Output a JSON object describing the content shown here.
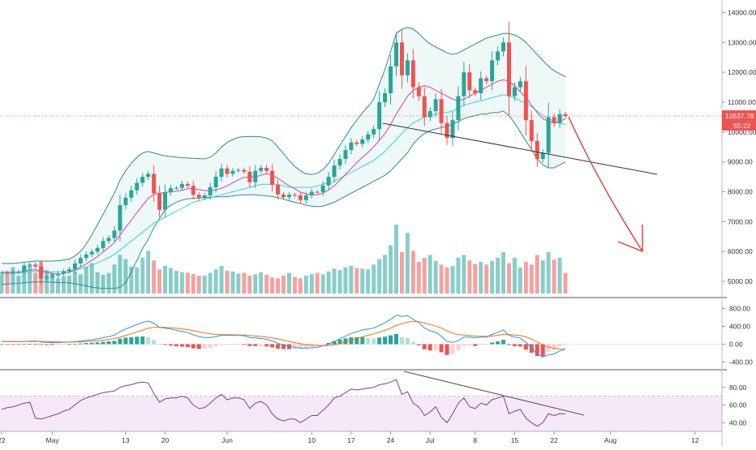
{
  "chart_data": {
    "type": "line",
    "timeframe_days": 90,
    "price_axis": {
      "ticks": [
        "14000.00",
        "13000.00",
        "12000.00",
        "11000.00",
        "10000.00",
        "9000.00",
        "8000.00",
        "7000.00",
        "6000.00",
        "5000.00"
      ],
      "tick_values": [
        14000,
        13000,
        12000,
        11000,
        10000,
        9000,
        8000,
        7000,
        6000,
        5000
      ],
      "ylim": [
        4200,
        14400
      ]
    },
    "time_axis": {
      "ticks": [
        "22",
        "May",
        "13",
        "20",
        "Jun",
        "10",
        "17",
        "24",
        "Jul",
        "8",
        "15",
        "22",
        "Aug",
        "12"
      ],
      "tick_bar_index": [
        0,
        9,
        22,
        29,
        40,
        55,
        62,
        69,
        76,
        84,
        91,
        98,
        108,
        123
      ]
    },
    "last_price": {
      "label": "10537.78",
      "value": 10537.78,
      "color": "#ef5350"
    },
    "countdown": {
      "label": "55:22"
    },
    "price_series": {
      "name": "",
      "close": [
        5300,
        5290,
        5310,
        5330,
        5530,
        5560,
        5500,
        5100,
        5150,
        5200,
        5260,
        5330,
        5400,
        5600,
        5780,
        5900,
        5990,
        6120,
        6350,
        6450,
        6700,
        7550,
        7800,
        8050,
        8300,
        8500,
        8600,
        7950,
        7400,
        7980,
        8120,
        8130,
        8260,
        8200,
        7900,
        7800,
        7880,
        8150,
        8500,
        8780,
        8600,
        8700,
        8730,
        8670,
        8320,
        8700,
        8800,
        8700,
        8230,
        7910,
        7820,
        7900,
        7880,
        7720,
        7880,
        8000,
        7990,
        8210,
        8500,
        8880,
        9100,
        9400,
        9650,
        9600,
        9750,
        9920,
        10100,
        11000,
        11300,
        12200,
        13000,
        11900,
        12400,
        11500,
        11200,
        10500,
        10700,
        11100,
        10300,
        9800,
        10400,
        11200,
        12000,
        11400,
        11300,
        11800,
        11700,
        12400,
        12700,
        13000,
        11200,
        11500,
        11700,
        10400,
        9700,
        9100,
        9300,
        10500,
        10300,
        10600,
        10537.78
      ]
    },
    "bollinger_basis_values": [
      5250,
      5260,
      5270,
      5280,
      5300,
      5320,
      5330,
      5330,
      5330,
      5320,
      5320,
      5330,
      5350,
      5380,
      5420,
      5480,
      5550,
      5620,
      5700,
      5800,
      5900,
      6050,
      6200,
      6350,
      6500,
      6650,
      6800,
      6950,
      7050,
      7150,
      7250,
      7350,
      7450,
      7550,
      7650,
      7700,
      7750,
      7800,
      7850,
      7900,
      7950,
      8000,
      8050,
      8100,
      8150,
      8200,
      8250,
      8250,
      8250,
      8250,
      8200,
      8150,
      8150,
      8150,
      8150,
      8150,
      8200,
      8250,
      8300,
      8350,
      8450,
      8550,
      8650,
      8750,
      8850,
      8950,
      9050,
      9200,
      9350,
      9550,
      9750,
      9950,
      10150,
      10300,
      10400,
      10500,
      10550,
      10600,
      10650,
      10650,
      10700,
      10800,
      10900,
      10950,
      11000,
      11050,
      11100,
      11150,
      11200,
      11250,
      11200,
      11150,
      11050,
      10950,
      10850,
      10700,
      10550,
      10450,
      10350,
      10300,
      10250
    ],
    "ma_fast_values": [
      5300,
      5300,
      5300,
      5310,
      5340,
      5370,
      5390,
      5340,
      5300,
      5270,
      5240,
      5260,
      5300,
      5380,
      5480,
      5580,
      5700,
      5830,
      5980,
      6130,
      6300,
      6550,
      6800,
      7050,
      7300,
      7550,
      7780,
      7920,
      7950,
      7980,
      8000,
      8020,
      8050,
      8100,
      8100,
      8070,
      8040,
      8030,
      8060,
      8120,
      8200,
      8300,
      8400,
      8480,
      8500,
      8500,
      8550,
      8600,
      8550,
      8450,
      8320,
      8200,
      8100,
      7990,
      7930,
      7900,
      7900,
      7960,
      8060,
      8200,
      8380,
      8580,
      8780,
      8980,
      9150,
      9320,
      9500,
      9720,
      9950,
      10250,
      10600,
      10900,
      11200,
      11400,
      11500,
      11550,
      11500,
      11400,
      11300,
      11200,
      11100,
      11050,
      11100,
      11200,
      11300,
      11400,
      11500,
      11600,
      11700,
      11750,
      11700,
      11550,
      11350,
      11150,
      10900,
      10650,
      10450,
      10350,
      10300,
      10350,
      10450
    ],
    "bollinger_upper_values": [
      5600,
      5600,
      5600,
      5620,
      5640,
      5660,
      5680,
      5680,
      5680,
      5680,
      5690,
      5710,
      5750,
      5850,
      6000,
      6250,
      6550,
      6900,
      7250,
      7600,
      7950,
      8400,
      8700,
      8950,
      9150,
      9300,
      9350,
      9300,
      9250,
      9200,
      9180,
      9160,
      9140,
      9130,
      9120,
      9110,
      9100,
      9150,
      9300,
      9500,
      9650,
      9750,
      9820,
      9850,
      9850,
      9850,
      9840,
      9800,
      9700,
      9500,
      9280,
      9050,
      8850,
      8700,
      8600,
      8580,
      8620,
      8750,
      8950,
      9250,
      9550,
      9850,
      10150,
      10400,
      10650,
      10850,
      11100,
      11600,
      12100,
      12700,
      13300,
      13450,
      13500,
      13450,
      13300,
      13100,
      12950,
      12850,
      12750,
      12650,
      12600,
      12650,
      12750,
      12850,
      12950,
      13050,
      13150,
      13200,
      13250,
      13300,
      13300,
      13250,
      13150,
      13000,
      12800,
      12600,
      12400,
      12200,
      12050,
      11950,
      11850
    ],
    "bollinger_lower_values": [
      4900,
      4910,
      4920,
      4930,
      4950,
      4970,
      4980,
      4980,
      4980,
      4970,
      4960,
      4950,
      4950,
      4920,
      4880,
      4850,
      4800,
      4780,
      4760,
      4760,
      4760,
      4800,
      4950,
      5300,
      5700,
      6100,
      6400,
      6800,
      7100,
      7400,
      7550,
      7650,
      7720,
      7760,
      7780,
      7790,
      7800,
      7820,
      7830,
      7830,
      7840,
      7860,
      7880,
      7900,
      7900,
      7900,
      7880,
      7860,
      7840,
      7800,
      7750,
      7700,
      7650,
      7600,
      7550,
      7520,
      7500,
      7520,
      7580,
      7650,
      7750,
      7850,
      7950,
      8050,
      8150,
      8250,
      8350,
      8450,
      8550,
      8700,
      8900,
      9100,
      9300,
      9600,
      9800,
      9950,
      10050,
      10100,
      10150,
      10200,
      10250,
      10350,
      10450,
      10500,
      10550,
      10600,
      10600,
      10650,
      10650,
      10700,
      10550,
      10300,
      10000,
      9700,
      9400,
      9100,
      8900,
      8800,
      8800,
      8900,
      9000
    ],
    "volume": [
      280,
      320,
      380,
      260,
      350,
      420,
      300,
      460,
      340,
      290,
      220,
      250,
      260,
      320,
      280,
      390,
      440,
      310,
      270,
      300,
      420,
      560,
      500,
      390,
      380,
      520,
      620,
      480,
      350,
      400,
      370,
      330,
      310,
      300,
      280,
      260,
      260,
      300,
      350,
      400,
      330,
      320,
      290,
      300,
      260,
      280,
      310,
      270,
      230,
      220,
      260,
      300,
      240,
      220,
      260,
      280,
      300,
      280,
      320,
      360,
      340,
      380,
      400,
      370,
      360,
      350,
      420,
      500,
      560,
      700,
      1000,
      600,
      880,
      620,
      460,
      520,
      560,
      470,
      420,
      380,
      400,
      520,
      560,
      480,
      430,
      460,
      420,
      470,
      520,
      600,
      440,
      520,
      380,
      460,
      420,
      560,
      480,
      600,
      490,
      520,
      300
    ],
    "macd_axis": {
      "ticks": [
        "800.00",
        "400.00",
        "0.00",
        "-400.00"
      ],
      "tick_values": [
        800,
        400,
        0,
        -400
      ],
      "ylim": [
        -700,
        1000
      ]
    },
    "macd_values": [
      60,
      60,
      58,
      56,
      60,
      70,
      72,
      50,
      40,
      35,
      35,
      40,
      48,
      58,
      70,
      85,
      100,
      120,
      145,
      170,
      200,
      280,
      340,
      390,
      440,
      490,
      520,
      470,
      380,
      360,
      340,
      310,
      290,
      260,
      210,
      170,
      150,
      150,
      170,
      200,
      200,
      200,
      200,
      190,
      150,
      140,
      130,
      110,
      70,
      20,
      -20,
      -50,
      -70,
      -90,
      -90,
      -80,
      -70,
      -40,
      0,
      60,
      120,
      180,
      240,
      280,
      320,
      340,
      360,
      420,
      480,
      560,
      650,
      620,
      640,
      560,
      480,
      360,
      300,
      270,
      180,
      60,
      40,
      80,
      160,
      160,
      140,
      160,
      160,
      220,
      260,
      320,
      200,
      160,
      140,
      40,
      -80,
      -220,
      -290,
      -240,
      -220,
      -150,
      -110
    ],
    "signal_values": [
      60,
      60,
      60,
      59,
      59,
      61,
      63,
      61,
      57,
      53,
      49,
      47,
      47,
      49,
      53,
      59,
      67,
      78,
      91,
      107,
      126,
      156,
      193,
      232,
      274,
      317,
      358,
      380,
      380,
      376,
      369,
      357,
      344,
      327,
      304,
      277,
      252,
      232,
      219,
      215,
      212,
      210,
      208,
      204,
      193,
      183,
      172,
      160,
      142,
      118,
      90,
      62,
      36,
      11,
      -9,
      -23,
      -33,
      -34,
      -27,
      -10,
      16,
      49,
      87,
      126,
      165,
      200,
      232,
      270,
      312,
      362,
      420,
      460,
      496,
      509,
      503,
      475,
      440,
      406,
      361,
      301,
      249,
      215,
      204,
      192,
      182,
      177,
      174,
      183,
      198,
      222,
      218,
      206,
      193,
      163,
      114,
      47,
      -20,
      -64,
      -95,
      -106,
      -107
    ],
    "rsi_axis": {
      "ticks": [
        "80.00",
        "60.00",
        "40.00"
      ],
      "tick_values": [
        80,
        60,
        40
      ],
      "ylim": [
        25,
        95
      ],
      "band": [
        30,
        70
      ]
    },
    "rsi_values": [
      55,
      57,
      58,
      60,
      62,
      63,
      45,
      44,
      46,
      48,
      50,
      53,
      55,
      60,
      65,
      68,
      70,
      72,
      74,
      75,
      76,
      80,
      82,
      83,
      85,
      86,
      85,
      73,
      63,
      67,
      68,
      68,
      70,
      68,
      60,
      56,
      57,
      62,
      68,
      72,
      66,
      68,
      68,
      66,
      56,
      62,
      64,
      60,
      50,
      44,
      42,
      44,
      44,
      40,
      44,
      48,
      48,
      54,
      60,
      68,
      70,
      74,
      78,
      77,
      78,
      79,
      80,
      83,
      84,
      86,
      89,
      72,
      75,
      62,
      58,
      48,
      52,
      58,
      46,
      40,
      50,
      62,
      68,
      58,
      56,
      62,
      60,
      66,
      68,
      70,
      50,
      53,
      55,
      45,
      40,
      36,
      40,
      50,
      48,
      50,
      50
    ]
  }
}
